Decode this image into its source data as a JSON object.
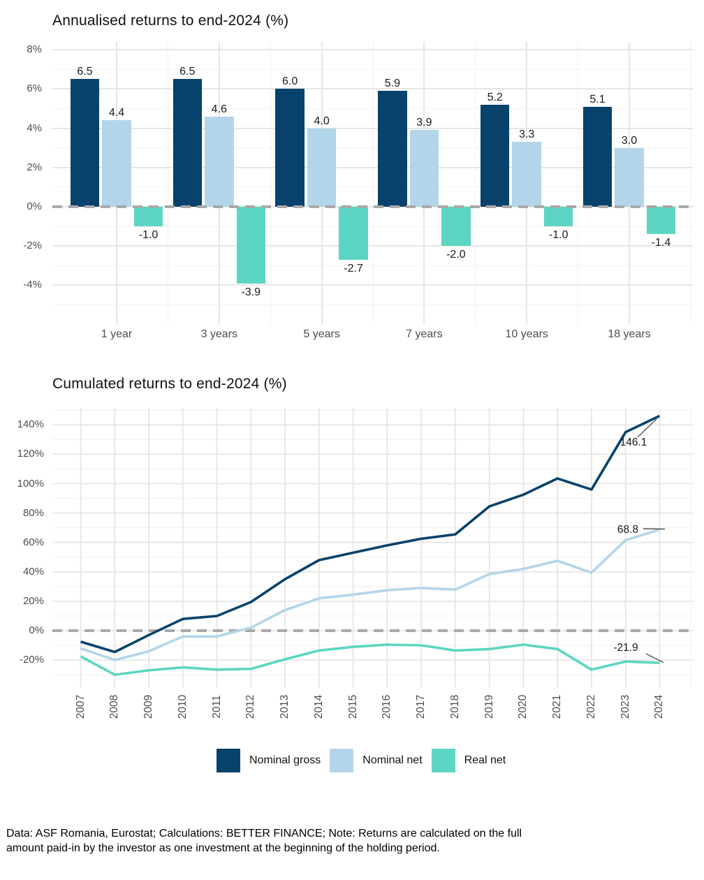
{
  "colors": {
    "nominal_gross": "#06426b",
    "nominal_net": "#b3d5e9",
    "real_net": "#5cd6c2",
    "zero_line": "#a9a9a9",
    "grid_major": "#e6e6e6",
    "grid_minor": "#f2f2f2",
    "tick_text": "#4d4d4d"
  },
  "chart_data": [
    {
      "type": "bar",
      "title": "Annualised returns to end-2024 (%)",
      "categories": [
        "1 year",
        "3 years",
        "5 years",
        "7 years",
        "10 years",
        "18 years"
      ],
      "series": [
        {
          "name": "Nominal gross",
          "color": "#06426b",
          "values": [
            6.5,
            6.5,
            6.0,
            5.9,
            5.2,
            5.1
          ]
        },
        {
          "name": "Nominal net",
          "color": "#b3d5e9",
          "values": [
            4.4,
            4.6,
            4.0,
            3.9,
            3.3,
            3.0
          ]
        },
        {
          "name": "Real net",
          "color": "#5cd6c2",
          "values": [
            -1.0,
            -3.9,
            -2.7,
            -2.0,
            -1.0,
            -1.4
          ]
        }
      ],
      "y_ticks": [
        8,
        6,
        4,
        2,
        0,
        -2,
        -4
      ],
      "y_tick_labels": [
        "8%",
        "6%",
        "4%",
        "2%",
        "0%",
        "-2%",
        "-4%"
      ],
      "ylim": [
        -6,
        8.4
      ],
      "zero_line": "dashed",
      "grid": true,
      "value_labels_shown": true
    },
    {
      "type": "line",
      "title": "Cumulated returns to end-2024 (%)",
      "x_labels": [
        "2007",
        "2008",
        "2009",
        "2010",
        "2011",
        "2012",
        "2013",
        "2014",
        "2015",
        "2016",
        "2017",
        "2018",
        "2019",
        "2020",
        "2021",
        "2022",
        "2023",
        "2024"
      ],
      "series": [
        {
          "name": "Nominal gross",
          "color": "#06426b",
          "end_label": "146.1",
          "values": [
            -7.5,
            -14.5,
            -3,
            8,
            10,
            19.5,
            35,
            48,
            53,
            58,
            62.5,
            65.5,
            84.5,
            92.5,
            103.5,
            96,
            135,
            146.1
          ]
        },
        {
          "name": "Nominal net",
          "color": "#b3d5e9",
          "end_label": "68.8",
          "values": [
            -12,
            -20,
            -14,
            -4,
            -4,
            2,
            14,
            22,
            24.5,
            27.5,
            29,
            28,
            38.5,
            42,
            47.5,
            39.5,
            61.5,
            68.8
          ]
        },
        {
          "name": "Real net",
          "color": "#5cd6c2",
          "end_label": "-21.9",
          "values": [
            -17.5,
            -30,
            -27,
            -25,
            -26.5,
            -26,
            -19.5,
            -13.5,
            -11,
            -9.5,
            -10,
            -13.5,
            -12.5,
            -9.5,
            -12.5,
            -26.5,
            -21,
            -21.9
          ]
        }
      ],
      "y_ticks": [
        140,
        120,
        100,
        80,
        60,
        40,
        20,
        0,
        -20
      ],
      "y_tick_labels": [
        "140%",
        "120%",
        "100%",
        "80%",
        "60%",
        "40%",
        "20%",
        "0%",
        "-20%"
      ],
      "ylim": [
        -32,
        151
      ],
      "zero_line": "dashed",
      "grid": true,
      "legend_position": "bottom"
    }
  ],
  "legend": {
    "items": [
      {
        "label": "Nominal gross",
        "color": "#06426b"
      },
      {
        "label": "Nominal net",
        "color": "#b3d5e9"
      },
      {
        "label": "Real net",
        "color": "#5cd6c2"
      }
    ]
  },
  "footer": {
    "lines": [
      "Data: ASF Romania, Eurostat; Calculations: BETTER FINANCE; Note: Returns are calculated on the full",
      "amount paid-in by the investor as one investment at the beginning of the holding period."
    ]
  }
}
